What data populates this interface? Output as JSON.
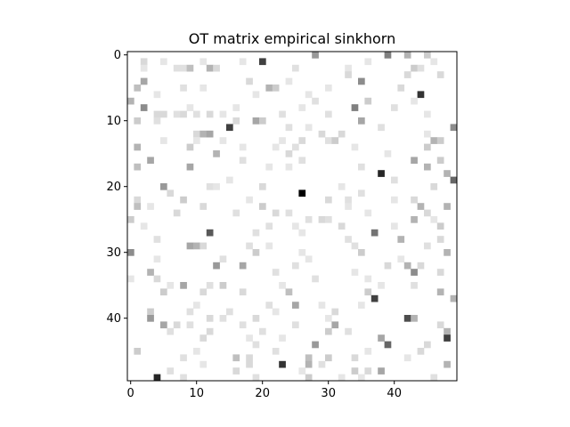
{
  "chart_data": {
    "type": "heatmap",
    "title": "OT matrix empirical sinkhorn",
    "xlabel": "",
    "ylabel": "",
    "colormap": "gray_r",
    "rows": 50,
    "cols": 50,
    "x_ticks": [
      0,
      10,
      20,
      30,
      40
    ],
    "x_tick_labels": [
      "0",
      "10",
      "20",
      "30",
      "40"
    ],
    "y_ticks": [
      0,
      10,
      20,
      30,
      40
    ],
    "y_tick_labels": [
      "0",
      "10",
      "20",
      "30",
      "40"
    ],
    "xlim": [
      -0.5,
      49.5
    ],
    "ylim": [
      49.5,
      -0.5
    ],
    "vmin": 0,
    "vmax": 1,
    "cells": [
      [
        0,
        28,
        0.4
      ],
      [
        0,
        39,
        0.5
      ],
      [
        0,
        42,
        0.3
      ],
      [
        0,
        45,
        0.2
      ],
      [
        1,
        2,
        0.15
      ],
      [
        1,
        20,
        0.75
      ],
      [
        1,
        5,
        0.1
      ],
      [
        1,
        11,
        0.1
      ],
      [
        1,
        17,
        0.1
      ],
      [
        1,
        36,
        0.1
      ],
      [
        1,
        46,
        0.1
      ],
      [
        2,
        2,
        0.1
      ],
      [
        2,
        7,
        0.12
      ],
      [
        2,
        8,
        0.12
      ],
      [
        2,
        9,
        0.25
      ],
      [
        2,
        12,
        0.3
      ],
      [
        2,
        13,
        0.15
      ],
      [
        2,
        25,
        0.12
      ],
      [
        2,
        33,
        0.1
      ],
      [
        2,
        43,
        0.2
      ],
      [
        2,
        44,
        0.12
      ],
      [
        3,
        33,
        0.15
      ],
      [
        3,
        42,
        0.15
      ],
      [
        3,
        47,
        0.15
      ],
      [
        4,
        2,
        0.35
      ],
      [
        4,
        18,
        0.15
      ],
      [
        4,
        24,
        0.1
      ],
      [
        4,
        35,
        0.45
      ],
      [
        5,
        1,
        0.25
      ],
      [
        5,
        8,
        0.12
      ],
      [
        5,
        11,
        0.1
      ],
      [
        5,
        21,
        0.3
      ],
      [
        5,
        22,
        0.2
      ],
      [
        5,
        30,
        0.1
      ],
      [
        5,
        41,
        0.15
      ],
      [
        6,
        4,
        0.1
      ],
      [
        6,
        19,
        0.1
      ],
      [
        6,
        27,
        0.1
      ],
      [
        6,
        44,
        0.8
      ],
      [
        7,
        0,
        0.3
      ],
      [
        7,
        28,
        0.12
      ],
      [
        7,
        36,
        0.2
      ],
      [
        7,
        43,
        0.1
      ],
      [
        8,
        2,
        0.45
      ],
      [
        8,
        9,
        0.1
      ],
      [
        8,
        16,
        0.1
      ],
      [
        8,
        26,
        0.1
      ],
      [
        8,
        34,
        0.5
      ],
      [
        8,
        40,
        0.12
      ],
      [
        9,
        4,
        0.15
      ],
      [
        9,
        5,
        0.15
      ],
      [
        9,
        7,
        0.12
      ],
      [
        9,
        8,
        0.15
      ],
      [
        9,
        10,
        0.12
      ],
      [
        9,
        12,
        0.15
      ],
      [
        9,
        14,
        0.1
      ],
      [
        9,
        23,
        0.12
      ],
      [
        9,
        30,
        0.12
      ],
      [
        9,
        45,
        0.1
      ],
      [
        10,
        1,
        0.2
      ],
      [
        10,
        4,
        0.12
      ],
      [
        10,
        16,
        0.15
      ],
      [
        10,
        19,
        0.35
      ],
      [
        10,
        20,
        0.2
      ],
      [
        10,
        35,
        0.35
      ],
      [
        11,
        15,
        0.75
      ],
      [
        11,
        24,
        0.12
      ],
      [
        11,
        27,
        0.1
      ],
      [
        11,
        38,
        0.12
      ],
      [
        11,
        49,
        0.45
      ],
      [
        12,
        10,
        0.15
      ],
      [
        12,
        11,
        0.3
      ],
      [
        12,
        12,
        0.35
      ],
      [
        12,
        29,
        0.15
      ],
      [
        12,
        32,
        0.15
      ],
      [
        12,
        45,
        0.1
      ],
      [
        13,
        5,
        0.1
      ],
      [
        13,
        10,
        0.1
      ],
      [
        13,
        14,
        0.1
      ],
      [
        13,
        23,
        0.1
      ],
      [
        13,
        26,
        0.15
      ],
      [
        13,
        30,
        0.12
      ],
      [
        13,
        31,
        0.2
      ],
      [
        13,
        46,
        0.3
      ],
      [
        13,
        47,
        0.2
      ],
      [
        14,
        1,
        0.3
      ],
      [
        14,
        9,
        0.2
      ],
      [
        14,
        17,
        0.1
      ],
      [
        14,
        22,
        0.1
      ],
      [
        14,
        25,
        0.12
      ],
      [
        14,
        34,
        0.1
      ],
      [
        14,
        45,
        0.2
      ],
      [
        15,
        13,
        0.3
      ],
      [
        15,
        24,
        0.15
      ],
      [
        15,
        39,
        0.1
      ],
      [
        16,
        3,
        0.35
      ],
      [
        16,
        17,
        0.12
      ],
      [
        16,
        26,
        0.12
      ],
      [
        16,
        43,
        0.35
      ],
      [
        16,
        47,
        0.2
      ],
      [
        17,
        1,
        0.25
      ],
      [
        17,
        9,
        0.35
      ],
      [
        17,
        21,
        0.1
      ],
      [
        17,
        24,
        0.1
      ],
      [
        17,
        35,
        0.12
      ],
      [
        17,
        45,
        0.3
      ],
      [
        18,
        38,
        0.85
      ],
      [
        18,
        48,
        0.3
      ],
      [
        19,
        15,
        0.1
      ],
      [
        19,
        40,
        0.12
      ],
      [
        19,
        49,
        0.6
      ],
      [
        20,
        5,
        0.4
      ],
      [
        20,
        12,
        0.12
      ],
      [
        20,
        13,
        0.1
      ],
      [
        20,
        20,
        0.15
      ],
      [
        20,
        32,
        0.1
      ],
      [
        20,
        46,
        0.15
      ],
      [
        21,
        6,
        0.15
      ],
      [
        21,
        26,
        1.0
      ],
      [
        21,
        35,
        0.12
      ],
      [
        22,
        1,
        0.15
      ],
      [
        22,
        8,
        0.2
      ],
      [
        22,
        18,
        0.1
      ],
      [
        22,
        30,
        0.15
      ],
      [
        22,
        33,
        0.12
      ],
      [
        22,
        40,
        0.1
      ],
      [
        22,
        43,
        0.15
      ],
      [
        23,
        1,
        0.25
      ],
      [
        23,
        3,
        0.1
      ],
      [
        23,
        11,
        0.15
      ],
      [
        23,
        20,
        0.2
      ],
      [
        23,
        33,
        0.1
      ],
      [
        23,
        44,
        0.3
      ],
      [
        23,
        48,
        0.3
      ],
      [
        24,
        7,
        0.15
      ],
      [
        24,
        16,
        0.12
      ],
      [
        24,
        22,
        0.15
      ],
      [
        24,
        24,
        0.12
      ],
      [
        24,
        36,
        0.1
      ],
      [
        24,
        45,
        0.15
      ],
      [
        25,
        0,
        0.2
      ],
      [
        25,
        27,
        0.12
      ],
      [
        25,
        29,
        0.15
      ],
      [
        25,
        30,
        0.12
      ],
      [
        25,
        43,
        0.3
      ],
      [
        25,
        46,
        0.1
      ],
      [
        26,
        2,
        0.1
      ],
      [
        26,
        21,
        0.12
      ],
      [
        26,
        25,
        0.1
      ],
      [
        26,
        32,
        0.15
      ],
      [
        26,
        40,
        0.1
      ],
      [
        26,
        47,
        0.2
      ],
      [
        27,
        12,
        0.65
      ],
      [
        27,
        19,
        0.12
      ],
      [
        27,
        26,
        0.1
      ],
      [
        27,
        37,
        0.55
      ],
      [
        28,
        4,
        0.12
      ],
      [
        28,
        33,
        0.12
      ],
      [
        28,
        41,
        0.3
      ],
      [
        28,
        47,
        0.15
      ],
      [
        29,
        9,
        0.35
      ],
      [
        29,
        10,
        0.3
      ],
      [
        29,
        11,
        0.15
      ],
      [
        29,
        18,
        0.12
      ],
      [
        29,
        21,
        0.1
      ],
      [
        29,
        34,
        0.12
      ],
      [
        29,
        45,
        0.12
      ],
      [
        30,
        0,
        0.45
      ],
      [
        30,
        19,
        0.2
      ],
      [
        30,
        26,
        0.1
      ],
      [
        30,
        35,
        0.2
      ],
      [
        30,
        48,
        0.3
      ],
      [
        31,
        4,
        0.1
      ],
      [
        31,
        14,
        0.12
      ],
      [
        31,
        27,
        0.1
      ],
      [
        31,
        41,
        0.1
      ],
      [
        32,
        13,
        0.4
      ],
      [
        32,
        17,
        0.35
      ],
      [
        32,
        25,
        0.12
      ],
      [
        32,
        39,
        0.15
      ],
      [
        32,
        42,
        0.3
      ],
      [
        32,
        44,
        0.15
      ],
      [
        33,
        3,
        0.3
      ],
      [
        33,
        22,
        0.12
      ],
      [
        33,
        34,
        0.1
      ],
      [
        33,
        43,
        0.45
      ],
      [
        33,
        47,
        0.15
      ],
      [
        34,
        0,
        0.1
      ],
      [
        34,
        4,
        0.15
      ],
      [
        34,
        28,
        0.12
      ],
      [
        34,
        36,
        0.1
      ],
      [
        35,
        6,
        0.1
      ],
      [
        35,
        8,
        0.35
      ],
      [
        35,
        12,
        0.12
      ],
      [
        35,
        14,
        0.2
      ],
      [
        35,
        23,
        0.1
      ],
      [
        35,
        38,
        0.1
      ],
      [
        35,
        43,
        0.12
      ],
      [
        36,
        5,
        0.2
      ],
      [
        36,
        11,
        0.15
      ],
      [
        36,
        17,
        0.15
      ],
      [
        36,
        24,
        0.25
      ],
      [
        36,
        36,
        0.2
      ],
      [
        36,
        47,
        0.3
      ],
      [
        37,
        37,
        0.75
      ],
      [
        37,
        49,
        0.3
      ],
      [
        38,
        10,
        0.1
      ],
      [
        38,
        21,
        0.12
      ],
      [
        38,
        25,
        0.35
      ],
      [
        38,
        29,
        0.1
      ],
      [
        38,
        35,
        0.1
      ],
      [
        39,
        3,
        0.2
      ],
      [
        39,
        9,
        0.12
      ],
      [
        39,
        15,
        0.12
      ],
      [
        39,
        22,
        0.1
      ],
      [
        39,
        31,
        0.15
      ],
      [
        40,
        3,
        0.4
      ],
      [
        40,
        12,
        0.15
      ],
      [
        40,
        14,
        0.12
      ],
      [
        40,
        19,
        0.15
      ],
      [
        40,
        30,
        0.1
      ],
      [
        40,
        42,
        0.7
      ],
      [
        40,
        43,
        0.3
      ],
      [
        41,
        5,
        0.35
      ],
      [
        41,
        7,
        0.15
      ],
      [
        41,
        9,
        0.12
      ],
      [
        41,
        17,
        0.12
      ],
      [
        41,
        25,
        0.12
      ],
      [
        41,
        31,
        0.35
      ],
      [
        41,
        47,
        0.15
      ],
      [
        42,
        6,
        0.12
      ],
      [
        42,
        12,
        0.15
      ],
      [
        42,
        20,
        0.12
      ],
      [
        42,
        30,
        0.2
      ],
      [
        42,
        33,
        0.12
      ],
      [
        42,
        48,
        0.3
      ],
      [
        43,
        11,
        0.15
      ],
      [
        43,
        18,
        0.1
      ],
      [
        43,
        23,
        0.1
      ],
      [
        43,
        38,
        0.35
      ],
      [
        43,
        48,
        0.75
      ],
      [
        44,
        19,
        0.12
      ],
      [
        44,
        28,
        0.4
      ],
      [
        44,
        39,
        0.6
      ],
      [
        44,
        45,
        0.15
      ],
      [
        45,
        1,
        0.2
      ],
      [
        45,
        10,
        0.1
      ],
      [
        45,
        22,
        0.12
      ],
      [
        45,
        36,
        0.1
      ],
      [
        45,
        44,
        0.15
      ],
      [
        46,
        8,
        0.12
      ],
      [
        46,
        16,
        0.25
      ],
      [
        46,
        18,
        0.15
      ],
      [
        46,
        27,
        0.25
      ],
      [
        46,
        30,
        0.2
      ],
      [
        46,
        34,
        0.15
      ],
      [
        46,
        42,
        0.1
      ],
      [
        47,
        11,
        0.1
      ],
      [
        47,
        18,
        0.15
      ],
      [
        47,
        23,
        0.8
      ],
      [
        47,
        27,
        0.3
      ],
      [
        47,
        29,
        0.12
      ],
      [
        47,
        48,
        0.3
      ],
      [
        48,
        6,
        0.12
      ],
      [
        48,
        16,
        0.15
      ],
      [
        48,
        26,
        0.1
      ],
      [
        48,
        34,
        0.2
      ],
      [
        48,
        36,
        0.15
      ],
      [
        48,
        38,
        0.35
      ],
      [
        49,
        4,
        0.85
      ],
      [
        49,
        8,
        0.12
      ],
      [
        49,
        19,
        0.12
      ],
      [
        49,
        27,
        0.2
      ],
      [
        49,
        32,
        0.1
      ],
      [
        49,
        35,
        0.1
      ],
      [
        49,
        46,
        0.12
      ]
    ]
  }
}
